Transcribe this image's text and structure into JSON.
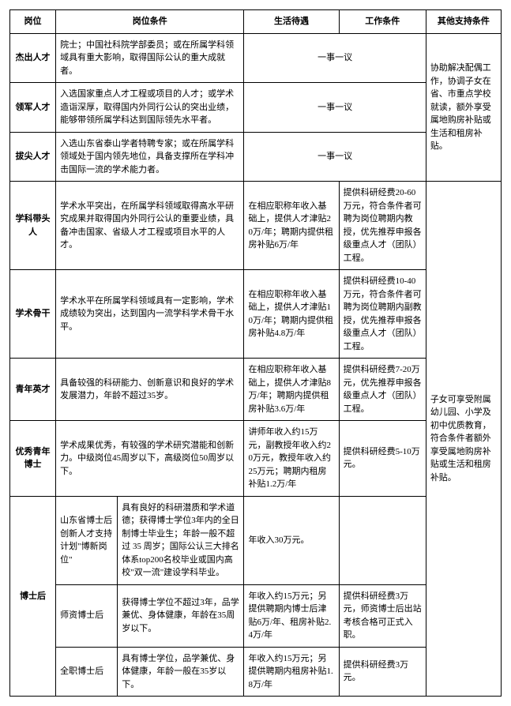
{
  "headers": {
    "post": "岗位",
    "conditions": "岗位条件",
    "life": "生活待遇",
    "work": "工作条件",
    "other": "其他支持条件"
  },
  "rows": {
    "r1": {
      "post": "杰出人才",
      "cond": "院士；中国社科院学部委员；或在所属学科领域具有重大影响，取得国际公认的重大成就者。",
      "life_work": "一事一议"
    },
    "r2": {
      "post": "领军人才",
      "cond": "入选国家重点人才工程或项目的人才；或学术造诣深厚，取得国内外同行公认的突出业绩，能够带领所属学科达到国际领先水平者。",
      "life_work": "一事一议"
    },
    "r3": {
      "post": "拔尖人才",
      "cond": "入选山东省泰山学者特聘专家；或在所属学科领域处于国内领先地位，具备支撑所在学科冲击国际一流的学术能力者。",
      "life_work": "一事一议"
    },
    "r4": {
      "post": "学科带头人",
      "cond": "学术水平突出，在所属学科领域取得高水平研究成果并取得国内外同行公认的重要业绩，具备冲击国家、省级人才工程或项目水平的人才。",
      "life": "在相应职称年收入基础上，提供人才津贴20万/年；聘期内提供租房补贴6万/年",
      "work": "提供科研经费20-60万元，符合条件者可聘为岗位聘期内教授，优先推荐申报各级重点人才（团队）工程。"
    },
    "r5": {
      "post": "学术骨干",
      "cond": "学术水平在所属学科领域具有一定影响，学术成绩较为突出，达到国内一流学科学术骨干水平。",
      "life": "在相应职称年收入基础上，提供人才津贴10万/年；聘期内提供租房补贴4.8万/年",
      "work": "提供科研经费10-40万元，符合条件者可聘为岗位聘期内副教授，优先推荐申报各级重点人才（团队）工程。"
    },
    "r6": {
      "post": "青年英才",
      "cond": "具备较强的科研能力、创新意识和良好的学术发展潜力，年龄不超过35岁。",
      "life": "在相应职称年收入基础上，提供人才津贴8万/年；聘期内提供租房补贴3.6万/年",
      "work": "提供科研经费7-20万元，优先推荐申报各级重点人才（团队）工程。"
    },
    "r7": {
      "post": "优秀青年博士",
      "cond": "学术成果优秀，有较强的学术研究潜能和创新力。中级岗位45周岁以下，高级岗位50周岁以下。",
      "life": "讲师年收入约15万元，副教授年收入约20万元，教授年收入约25万元；聘期内租房补贴1.2万/年",
      "work": "提供科研经费5-10万元。"
    },
    "r8": {
      "post": "博士后",
      "sub1_title": "山东省博士后创新人才支持计划\"博新岗位\"",
      "sub1_cond": "具有良好的科研潜质和学术道德；获得博士学位3年内的全日制博士毕业生；年龄一般不超过 35 周岁；国际公认三大排名体系top200名校毕业或国内高校\"双一流\"建设学科毕业。",
      "sub1_life": "年收入30万元。",
      "sub2_title": "师资博士后",
      "sub2_cond": "获得博士学位不超过3年，品学兼优、身体健康，年龄在35周岁以下。",
      "sub2_life": "年收入约15万元；另提供聘期内博士后津贴6万/年、租房补贴2.4万/年",
      "sub2_work": "提供科研经费3万元，师资博士后出站考核合格可正式入职。",
      "sub3_title": "全职博士后",
      "sub3_cond": "具有博士学位，品学兼优、身体健康，年龄一般在35岁以下。",
      "sub3_life": "年收入约15万元；另提供聘期内租房补贴1.8万/年",
      "sub3_work": "提供科研经费3万元。"
    }
  },
  "other": {
    "part1": "协助解决配偶工作，协调子女在省、市重点学校就读，额外享受属地购房补贴或生活和租房补贴。",
    "part2": "子女可享受附属幼儿园、小学及初中优质教育，符合条件者额外享受属地购房补贴或生活和租房补贴。"
  },
  "style": {
    "font_family": "SimSun",
    "font_size_pt": 11,
    "border_color": "#000000",
    "background_color": "#ffffff",
    "text_color": "#000000"
  }
}
